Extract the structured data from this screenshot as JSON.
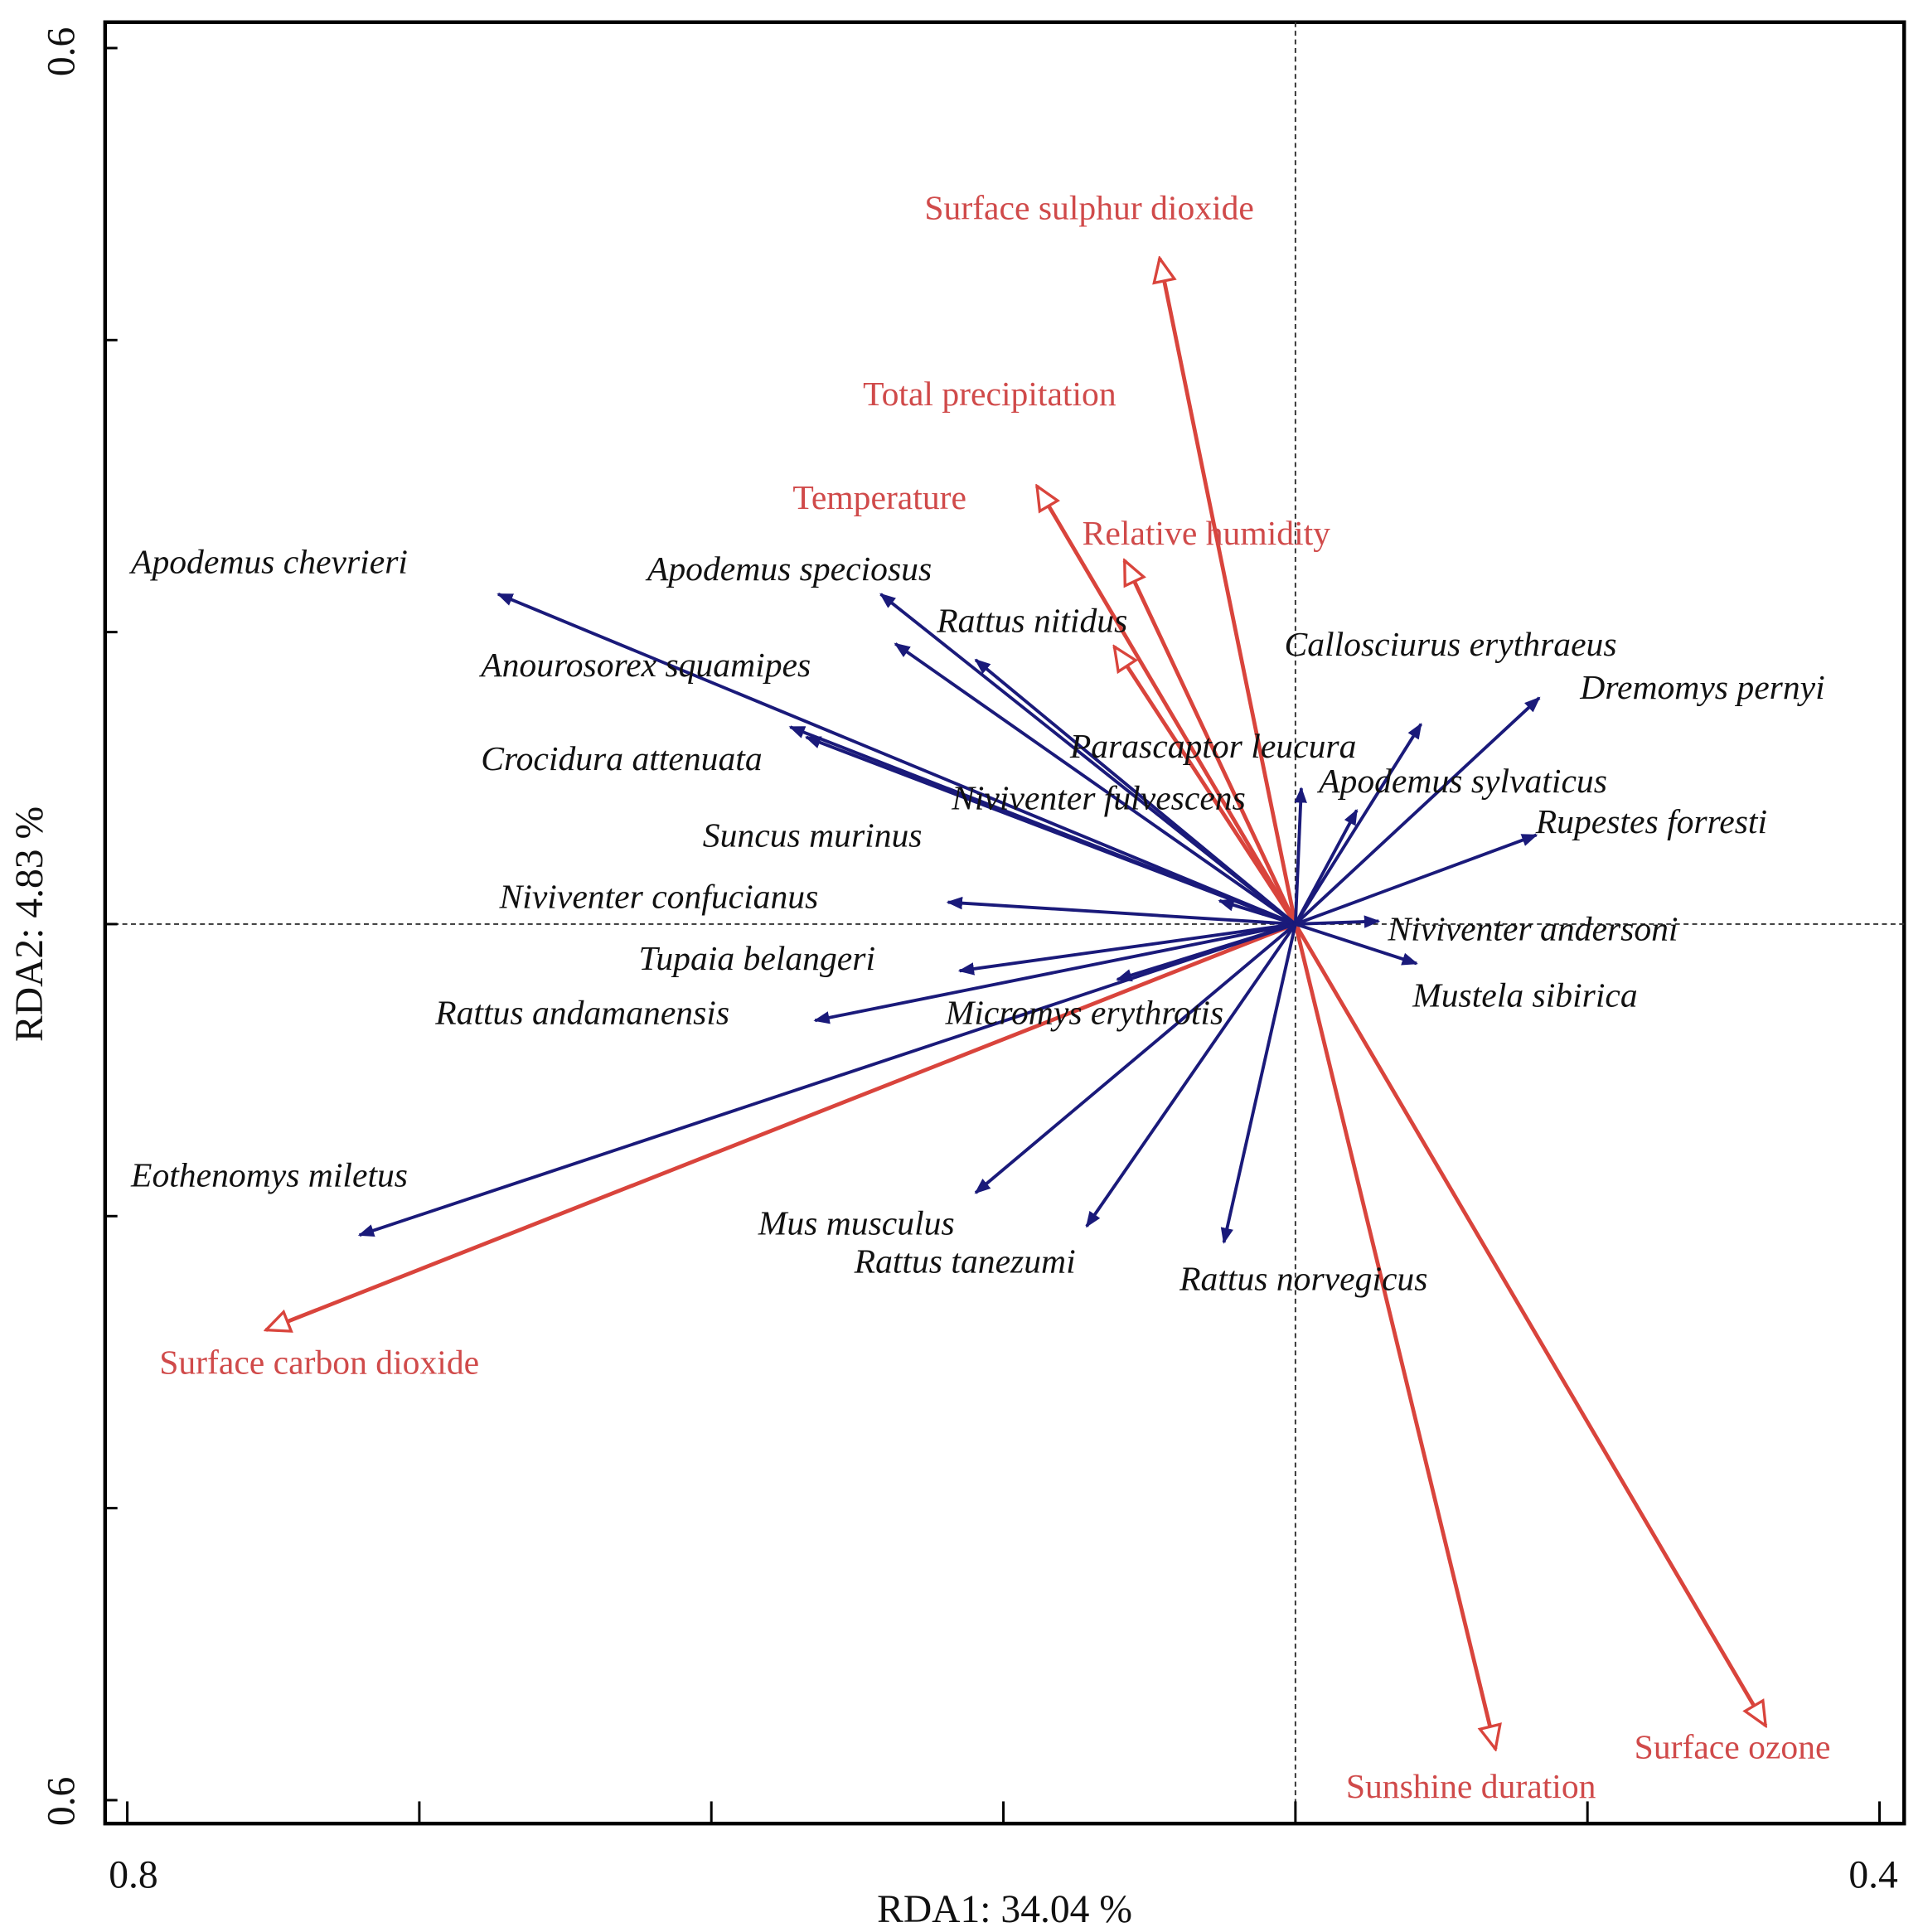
{
  "chart_data": {
    "type": "scatter",
    "subtype": "RDA biplot",
    "xlabel": "RDA1: 34.04 %",
    "ylabel": "RDA2: 4.83 %",
    "xlim": [
      -0.8,
      0.4
    ],
    "ylim": [
      -0.6,
      0.6
    ],
    "x_tick_labels": [
      "0.8",
      "0.4"
    ],
    "y_tick_labels": [
      "0.6",
      "0.6"
    ],
    "grid": false,
    "reference_lines": "dashed lines at x=0 and y=0",
    "colors": {
      "species": "#1a1a7a",
      "environment": "#d9443c",
      "env_text": "#d04a4a"
    },
    "species": [
      {
        "name": "Apodemus chevrieri",
        "x": -0.546,
        "y": 0.226
      },
      {
        "name": "Apodemus speciosus",
        "x": -0.284,
        "y": 0.226
      },
      {
        "name": "Anourosorex squamipes",
        "x": -0.274,
        "y": 0.192
      },
      {
        "name": "Rattus nitidus",
        "x": -0.219,
        "y": 0.181
      },
      {
        "name": "Crocidura attenuata",
        "x": -0.346,
        "y": 0.135
      },
      {
        "name": "Suncus murinus",
        "x": -0.335,
        "y": 0.128
      },
      {
        "name": "Niviventer fulvescens",
        "x": -0.052,
        "y": 0.016
      },
      {
        "name": "Parascaptor leucura",
        "x": 0.004,
        "y": 0.093
      },
      {
        "name": "Callosciurus erythraeus",
        "x": 0.086,
        "y": 0.137
      },
      {
        "name": "Dremomys pernyi",
        "x": 0.167,
        "y": 0.155
      },
      {
        "name": "Apodemus sylvaticus",
        "x": 0.042,
        "y": 0.078
      },
      {
        "name": "Rupestes forresti",
        "x": 0.165,
        "y": 0.061
      },
      {
        "name": "Niviventer andersoni",
        "x": 0.057,
        "y": 0.002
      },
      {
        "name": "Mustela sibirica",
        "x": 0.083,
        "y": -0.027
      },
      {
        "name": "Niviventer confucianus",
        "x": -0.238,
        "y": 0.015
      },
      {
        "name": "Tupaia belangeri",
        "x": -0.23,
        "y": -0.032
      },
      {
        "name": "Rattus andamanensis",
        "x": -0.329,
        "y": -0.066
      },
      {
        "name": "Micromys erythrotis",
        "x": -0.122,
        "y": -0.038
      },
      {
        "name": "Eothenomys miletus",
        "x": -0.641,
        "y": -0.213
      },
      {
        "name": "Mus musculus",
        "x": -0.219,
        "y": -0.184
      },
      {
        "name": "Rattus tanezumi",
        "x": -0.143,
        "y": -0.207
      },
      {
        "name": "Rattus norvegicus",
        "x": -0.049,
        "y": -0.218
      }
    ],
    "environment": [
      {
        "name": "Surface sulphur dioxide",
        "x": -0.093,
        "y": 0.456
      },
      {
        "name": "Total precipitation",
        "x": -0.177,
        "y": 0.3
      },
      {
        "name": "Temperature",
        "x": -0.117,
        "y": 0.249
      },
      {
        "name": "Relative humidity",
        "x": -0.124,
        "y": 0.19
      },
      {
        "name": "Surface carbon dioxide",
        "x": -0.705,
        "y": -0.278
      },
      {
        "name": "Sunshine duration",
        "x": 0.137,
        "y": -0.565
      },
      {
        "name": "Surface ozone",
        "x": 0.322,
        "y": -0.549
      }
    ]
  }
}
